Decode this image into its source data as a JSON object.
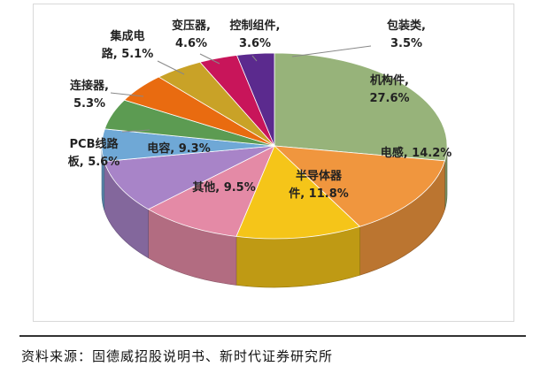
{
  "chart_data": {
    "type": "pie",
    "title": "",
    "three_d": true,
    "slices": [
      {
        "label_lines": [
          "机构件,",
          "27.6%"
        ],
        "label": "机构件",
        "value": 27.6,
        "color": "#97b37a"
      },
      {
        "label_lines": [
          "电感, 14.2%"
        ],
        "label": "电感",
        "value": 14.2,
        "color": "#f0963e"
      },
      {
        "label_lines": [
          "半导体器",
          "件, 11.8%"
        ],
        "label": "半导体器件",
        "value": 11.8,
        "color": "#f5c519"
      },
      {
        "label_lines": [
          "其他, 9.5%"
        ],
        "label": "其他",
        "value": 9.5,
        "color": "#e48aa6"
      },
      {
        "label_lines": [
          "电容, 9.3%"
        ],
        "label": "电容",
        "value": 9.3,
        "color": "#a884c8"
      },
      {
        "label_lines": [
          "PCB线路",
          "板, 5.6%"
        ],
        "label": "PCB线路板",
        "value": 5.6,
        "color": "#6fa8d6"
      },
      {
        "label_lines": [
          "连接器,",
          "5.3%"
        ],
        "label": "连接器",
        "value": 5.3,
        "color": "#5c9b52"
      },
      {
        "label_lines": [
          "集成电",
          "路, 5.1%"
        ],
        "label": "集成电路",
        "value": 5.1,
        "color": "#e96b10"
      },
      {
        "label_lines": [
          "变压器,",
          "4.6%"
        ],
        "label": "变压器",
        "value": 4.6,
        "color": "#c9a227"
      },
      {
        "label_lines": [
          "控制组件,",
          "3.6%"
        ],
        "label": "控制组件",
        "value": 3.6,
        "color": "#c8155a"
      },
      {
        "label_lines": [
          "包装类,",
          "3.5%"
        ],
        "label": "包装类",
        "value": 3.5,
        "color": "#5b2a8e"
      }
    ]
  },
  "source_note": "资料来源：固德威招股说明书、新时代证券研究所"
}
